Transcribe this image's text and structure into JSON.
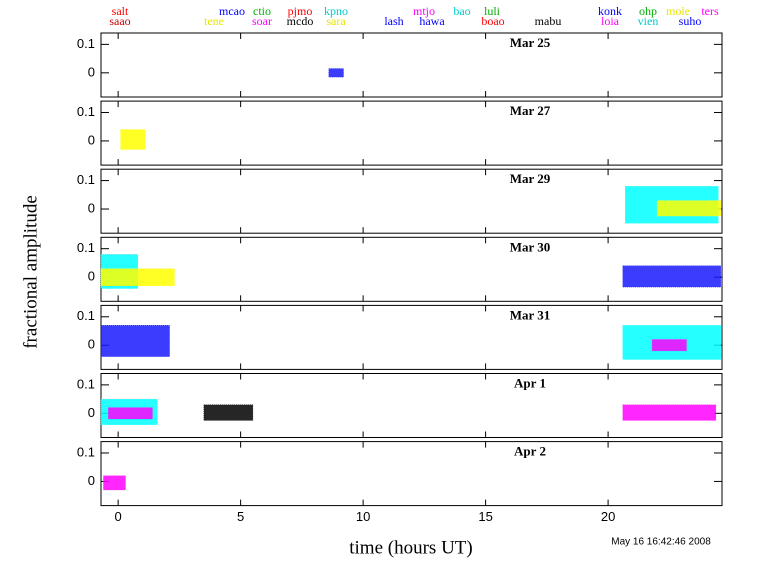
{
  "chart_data": {
    "type": "range",
    "ylabel": "fractional amplitude",
    "xlabel": "time (hours UT)",
    "timestamp": "May 16 16:42:46 2008",
    "xlim": [
      -0.7,
      24.65
    ],
    "xticks": [
      0,
      5,
      10,
      15,
      20
    ],
    "stations": [
      {
        "name": "salt",
        "color": "#ff0000"
      },
      {
        "name": "saao",
        "color": "#cc0000"
      },
      {
        "name": "tene",
        "color": "#e6e600"
      },
      {
        "name": "mcao",
        "color": "#0000ff"
      },
      {
        "name": "ctio",
        "color": "#00b000"
      },
      {
        "name": "soar",
        "color": "#ff00ff"
      },
      {
        "name": "pjmo",
        "color": "#ff0000"
      },
      {
        "name": "mcdo",
        "color": "#000000"
      },
      {
        "name": "kpno",
        "color": "#00cccc"
      },
      {
        "name": "sara",
        "color": "#e6e600"
      },
      {
        "name": "lash",
        "color": "#0000ff"
      },
      {
        "name": "mtjo",
        "color": "#ff00ff"
      },
      {
        "name": "hawa",
        "color": "#0000ff"
      },
      {
        "name": "bao",
        "color": "#00cccc"
      },
      {
        "name": "luli",
        "color": "#00b000"
      },
      {
        "name": "boao",
        "color": "#ff0000"
      },
      {
        "name": "mabu",
        "color": "#000000"
      },
      {
        "name": "konk",
        "color": "#0000ff"
      },
      {
        "name": "loia",
        "color": "#ff00ff"
      },
      {
        "name": "ohp",
        "color": "#00b000"
      },
      {
        "name": "vien",
        "color": "#00cccc"
      },
      {
        "name": "mole",
        "color": "#e6e600"
      },
      {
        "name": "suho",
        "color": "#0000ff"
      },
      {
        "name": "ters",
        "color": "#ff00ff"
      }
    ],
    "panels": [
      {
        "title": "Mar 25",
        "ylim": [
          -0.085,
          0.14
        ],
        "yticks": [
          0,
          0.1
        ],
        "segments": [
          {
            "color": "#1a1aff",
            "x": [
              8.6,
              9.2
            ],
            "y": [
              -0.015,
              0.015
            ]
          }
        ]
      },
      {
        "title": "Mar 27",
        "ylim": [
          -0.085,
          0.14
        ],
        "yticks": [
          0,
          0.1
        ],
        "segments": [
          {
            "color": "#ffff00",
            "x": [
              0.1,
              1.1
            ],
            "y": [
              -0.03,
              0.04
            ]
          }
        ]
      },
      {
        "title": "Mar 29",
        "ylim": [
          -0.085,
          0.14
        ],
        "yticks": [
          0,
          0.1
        ],
        "segments": [
          {
            "color": "#00ffff",
            "x": [
              20.7,
              24.5
            ],
            "y": [
              -0.05,
              0.08
            ]
          },
          {
            "color": "#ffff00",
            "x": [
              22,
              24.6
            ],
            "y": [
              -0.025,
              0.03
            ]
          }
        ]
      },
      {
        "title": "Mar 30",
        "ylim": [
          -0.085,
          0.14
        ],
        "yticks": [
          0,
          0.1
        ],
        "segments": [
          {
            "color": "#00ffff",
            "x": [
              -0.7,
              0.8
            ],
            "y": [
              -0.04,
              0.08
            ]
          },
          {
            "color": "#ffff00",
            "x": [
              -0.7,
              2.3
            ],
            "y": [
              -0.03,
              0.03
            ]
          },
          {
            "color": "#1a1aff",
            "x": [
              20.6,
              24.6
            ],
            "y": [
              -0.035,
              0.04
            ]
          }
        ]
      },
      {
        "title": "Mar 31",
        "ylim": [
          -0.085,
          0.14
        ],
        "yticks": [
          0,
          0.1
        ],
        "segments": [
          {
            "color": "#1a1aff",
            "x": [
              -0.7,
              2.1
            ],
            "y": [
              -0.04,
              0.07
            ]
          },
          {
            "color": "#00ffff",
            "x": [
              20.6,
              24.6
            ],
            "y": [
              -0.05,
              0.07
            ]
          },
          {
            "color": "#ff00ff",
            "x": [
              21.8,
              23.2
            ],
            "y": [
              -0.02,
              0.02
            ]
          }
        ]
      },
      {
        "title": "Apr 1",
        "ylim": [
          -0.085,
          0.14
        ],
        "yticks": [
          0,
          0.1
        ],
        "segments": [
          {
            "color": "#00ffff",
            "x": [
              -0.7,
              1.6
            ],
            "y": [
              -0.04,
              0.05
            ]
          },
          {
            "color": "#ff00ff",
            "x": [
              -0.4,
              1.4
            ],
            "y": [
              -0.02,
              0.02
            ]
          },
          {
            "color": "#000000",
            "x": [
              3.5,
              5.5
            ],
            "y": [
              -0.025,
              0.03
            ]
          },
          {
            "color": "#ff00ff",
            "x": [
              20.6,
              24.4
            ],
            "y": [
              -0.025,
              0.03
            ]
          }
        ]
      },
      {
        "title": "Apr 2",
        "ylim": [
          -0.085,
          0.14
        ],
        "yticks": [
          0,
          0.1
        ],
        "segments": [
          {
            "color": "#ff00ff",
            "x": [
              -0.6,
              0.3
            ],
            "y": [
              -0.03,
              0.02
            ]
          }
        ]
      }
    ]
  }
}
